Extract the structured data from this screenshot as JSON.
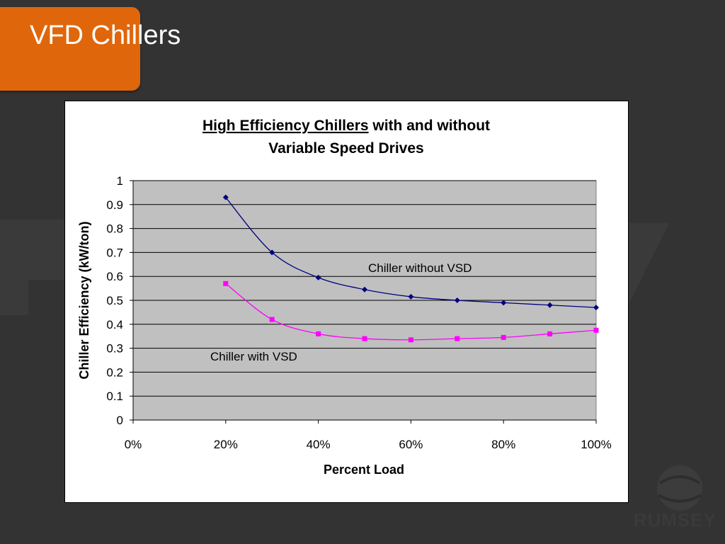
{
  "slide": {
    "title": "VFD Chillers",
    "logo_text": "RUMSEY"
  },
  "colors": {
    "background": "#333333",
    "title_box": "#e0660b",
    "plot_area": "#c0c0c0",
    "series_without_vsd": "#000080",
    "series_with_vsd": "#ff00ff"
  },
  "chart_data": {
    "type": "line",
    "title_underlined": "High Efficiency Chillers",
    "title_rest_line1": " with and without",
    "title_line2": "Variable Speed Drives",
    "xlabel": "Percent Load",
    "ylabel": "Chiller Efficiency (kW/ton)",
    "xlim": [
      0,
      100
    ],
    "ylim": [
      0,
      1
    ],
    "x_ticks": [
      0,
      20,
      40,
      60,
      80,
      100
    ],
    "x_tick_labels": [
      "0%",
      "20%",
      "40%",
      "60%",
      "80%",
      "100%"
    ],
    "y_ticks": [
      0,
      0.1,
      0.2,
      0.3,
      0.4,
      0.5,
      0.6,
      0.7,
      0.8,
      0.9,
      1
    ],
    "y_tick_labels": [
      "0",
      "0.1",
      "0.2",
      "0.3",
      "0.4",
      "0.5",
      "0.6",
      "0.7",
      "0.8",
      "0.9",
      "1"
    ],
    "grid": true,
    "series": [
      {
        "name": "Chiller without VSD",
        "marker": "diamond",
        "x": [
          20,
          30,
          40,
          50,
          60,
          70,
          80,
          90,
          100
        ],
        "values": [
          0.93,
          0.7,
          0.595,
          0.545,
          0.515,
          0.5,
          0.49,
          0.48,
          0.47
        ]
      },
      {
        "name": "Chiller with VSD",
        "marker": "square",
        "x": [
          20,
          30,
          40,
          50,
          60,
          70,
          80,
          90,
          100
        ],
        "values": [
          0.57,
          0.42,
          0.36,
          0.34,
          0.335,
          0.34,
          0.345,
          0.36,
          0.375
        ]
      }
    ],
    "annotations": [
      {
        "text": "Chiller without VSD",
        "series": 0,
        "anchor_x": 70,
        "anchor_y": 0.6
      },
      {
        "text": "Chiller with VSD",
        "series": 1,
        "anchor_x": 20,
        "anchor_y": 0.25
      }
    ]
  }
}
